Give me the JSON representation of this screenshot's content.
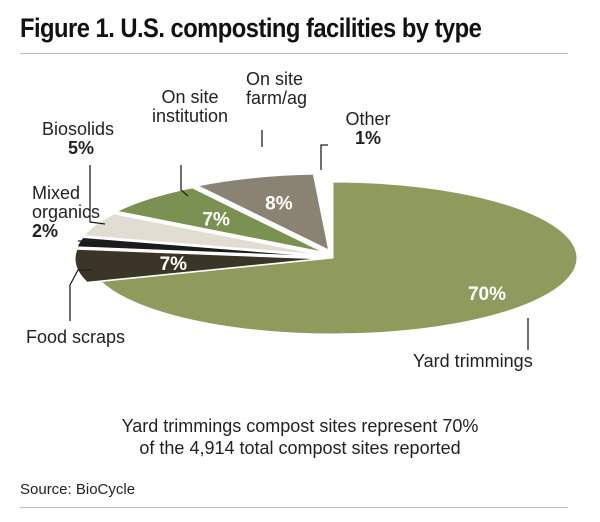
{
  "title": "Figure 1. U.S. composting facilities by type",
  "chart_data": {
    "type": "pie",
    "title": "Figure 1. U.S. composting facilities by type",
    "slices": [
      {
        "name": "Yard trimmings",
        "value": 70,
        "label": "70%",
        "color": "#8e9b5c"
      },
      {
        "name": "Food scraps",
        "value": 7,
        "label": "7%",
        "color": "#3a3527"
      },
      {
        "name": "Mixed organics",
        "value": 2,
        "label": "2%",
        "color": "#1b1b1b"
      },
      {
        "name": "Biosolids",
        "value": 5,
        "label": "5%",
        "color": "#e2ddd2"
      },
      {
        "name": "On site institution",
        "value": 7,
        "label": "7%",
        "color": "#7a9152"
      },
      {
        "name": "On site farm/ag",
        "value": 8,
        "label": "8%",
        "color": "#8a8374"
      },
      {
        "name": "Other",
        "value": 1,
        "label": "1%",
        "color": "#ffffff"
      }
    ]
  },
  "labels": {
    "biosolids": {
      "name": "Biosolids",
      "pct": "5%"
    },
    "mixed": {
      "line1": "Mixed",
      "line2": "organics",
      "pct": "2%"
    },
    "institution": {
      "line1": "On site",
      "line2": "institution"
    },
    "farm": {
      "line1": "On site",
      "line2": "farm/ag"
    },
    "other": {
      "name": "Other",
      "pct": "1%"
    },
    "food": {
      "name": "Food scraps"
    },
    "yard": {
      "name": "Yard trimmings"
    }
  },
  "caption": {
    "line1": "Yard trimmings compost sites represent 70%",
    "line2": "of the 4,914 total compost sites reported"
  },
  "source": "Source: BioCycle"
}
